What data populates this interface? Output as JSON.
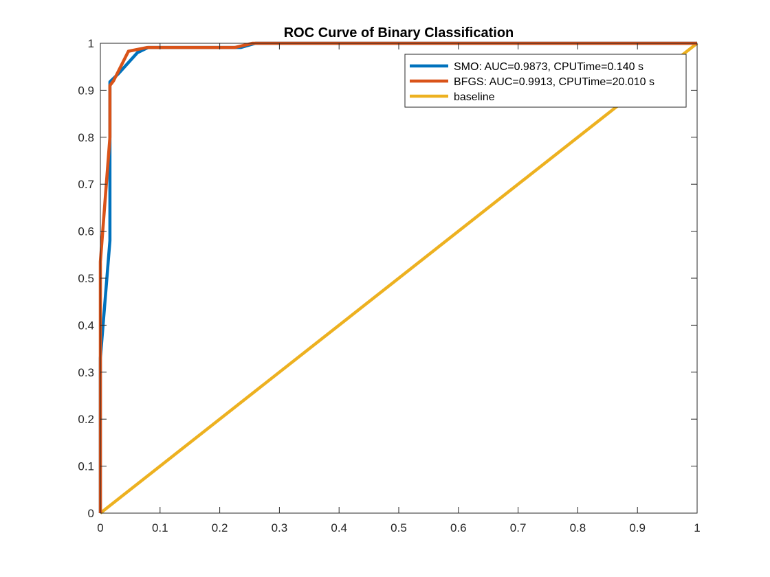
{
  "chart_data": {
    "type": "line",
    "title": "ROC Curve of Binary Classification",
    "xlabel": "",
    "ylabel": "",
    "xlim": [
      0,
      1
    ],
    "ylim": [
      0,
      1
    ],
    "grid": false,
    "legend_position": "top-right",
    "x_ticks": [
      "0",
      "0.1",
      "0.2",
      "0.3",
      "0.4",
      "0.5",
      "0.6",
      "0.7",
      "0.8",
      "0.9",
      "1"
    ],
    "y_ticks": [
      "0",
      "0.1",
      "0.2",
      "0.3",
      "0.4",
      "0.5",
      "0.6",
      "0.7",
      "0.8",
      "0.9",
      "1"
    ],
    "series": [
      {
        "name": "SMO: AUC=0.9873, CPUTime=0.140 s",
        "color": "#0072BD",
        "x": [
          0,
          0,
          0.016,
          0.016,
          0.016,
          0.03,
          0.062,
          0.08,
          0.235,
          0.26,
          1
        ],
        "y": [
          0,
          0.33,
          0.58,
          0.83,
          0.918,
          0.935,
          0.98,
          0.991,
          0.991,
          1,
          1
        ]
      },
      {
        "name": "BFGS: AUC=0.9913, CPUTime=20.010 s",
        "color": "#D95319",
        "x": [
          0,
          0,
          0.016,
          0.016,
          0.022,
          0.047,
          0.078,
          0.225,
          0.255,
          1
        ],
        "y": [
          0,
          0.535,
          0.8,
          0.91,
          0.92,
          0.983,
          0.991,
          0.991,
          1,
          1
        ]
      },
      {
        "name": "baseline",
        "color": "#EDB120",
        "x": [
          0,
          1
        ],
        "y": [
          0,
          1
        ]
      }
    ]
  }
}
